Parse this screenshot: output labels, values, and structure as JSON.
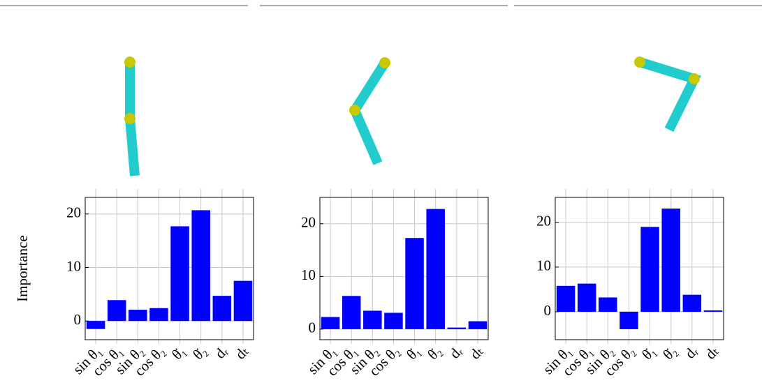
{
  "chart_data": [
    {
      "type": "bar",
      "y_label": "Importance",
      "categories": [
        "sin θ₁",
        "cos θ₁",
        "sin θ₂",
        "cos θ₂",
        "θ̇₁",
        "θ̇₂",
        "dᵣ",
        "dₜ"
      ],
      "values": [
        -1.5,
        3.9,
        2.1,
        2.4,
        17.7,
        20.7,
        4.7,
        7.5
      ],
      "color": "#0000ff",
      "ylim": [
        -3.5,
        23.1
      ],
      "yticks": [
        0,
        10,
        20
      ],
      "grid": true
    },
    {
      "type": "bar",
      "categories": [
        "sin θ₁",
        "cos θ₁",
        "sin θ₂",
        "cos θ₂",
        "θ̇₁",
        "θ̇₂",
        "dᵣ",
        "dₜ"
      ],
      "values": [
        2.3,
        6.3,
        3.5,
        3.1,
        17.3,
        22.8,
        0.3,
        1.5
      ],
      "color": "#0000ff",
      "ylim": [
        -2.0,
        25.0
      ],
      "yticks": [
        0,
        10,
        20
      ],
      "grid": true
    },
    {
      "type": "bar",
      "categories": [
        "sin θ₁",
        "cos θ₁",
        "sin θ₂",
        "cos θ₂",
        "θ̇₁",
        "θ̇₂",
        "dᵣ",
        "dₜ"
      ],
      "values": [
        5.8,
        6.3,
        3.2,
        -3.9,
        19.0,
        23.1,
        3.8,
        0.3
      ],
      "color": "#0000ff",
      "ylim": [
        -6.25,
        25.6
      ],
      "yticks": [
        0,
        10,
        20
      ],
      "grid": true
    }
  ]
}
